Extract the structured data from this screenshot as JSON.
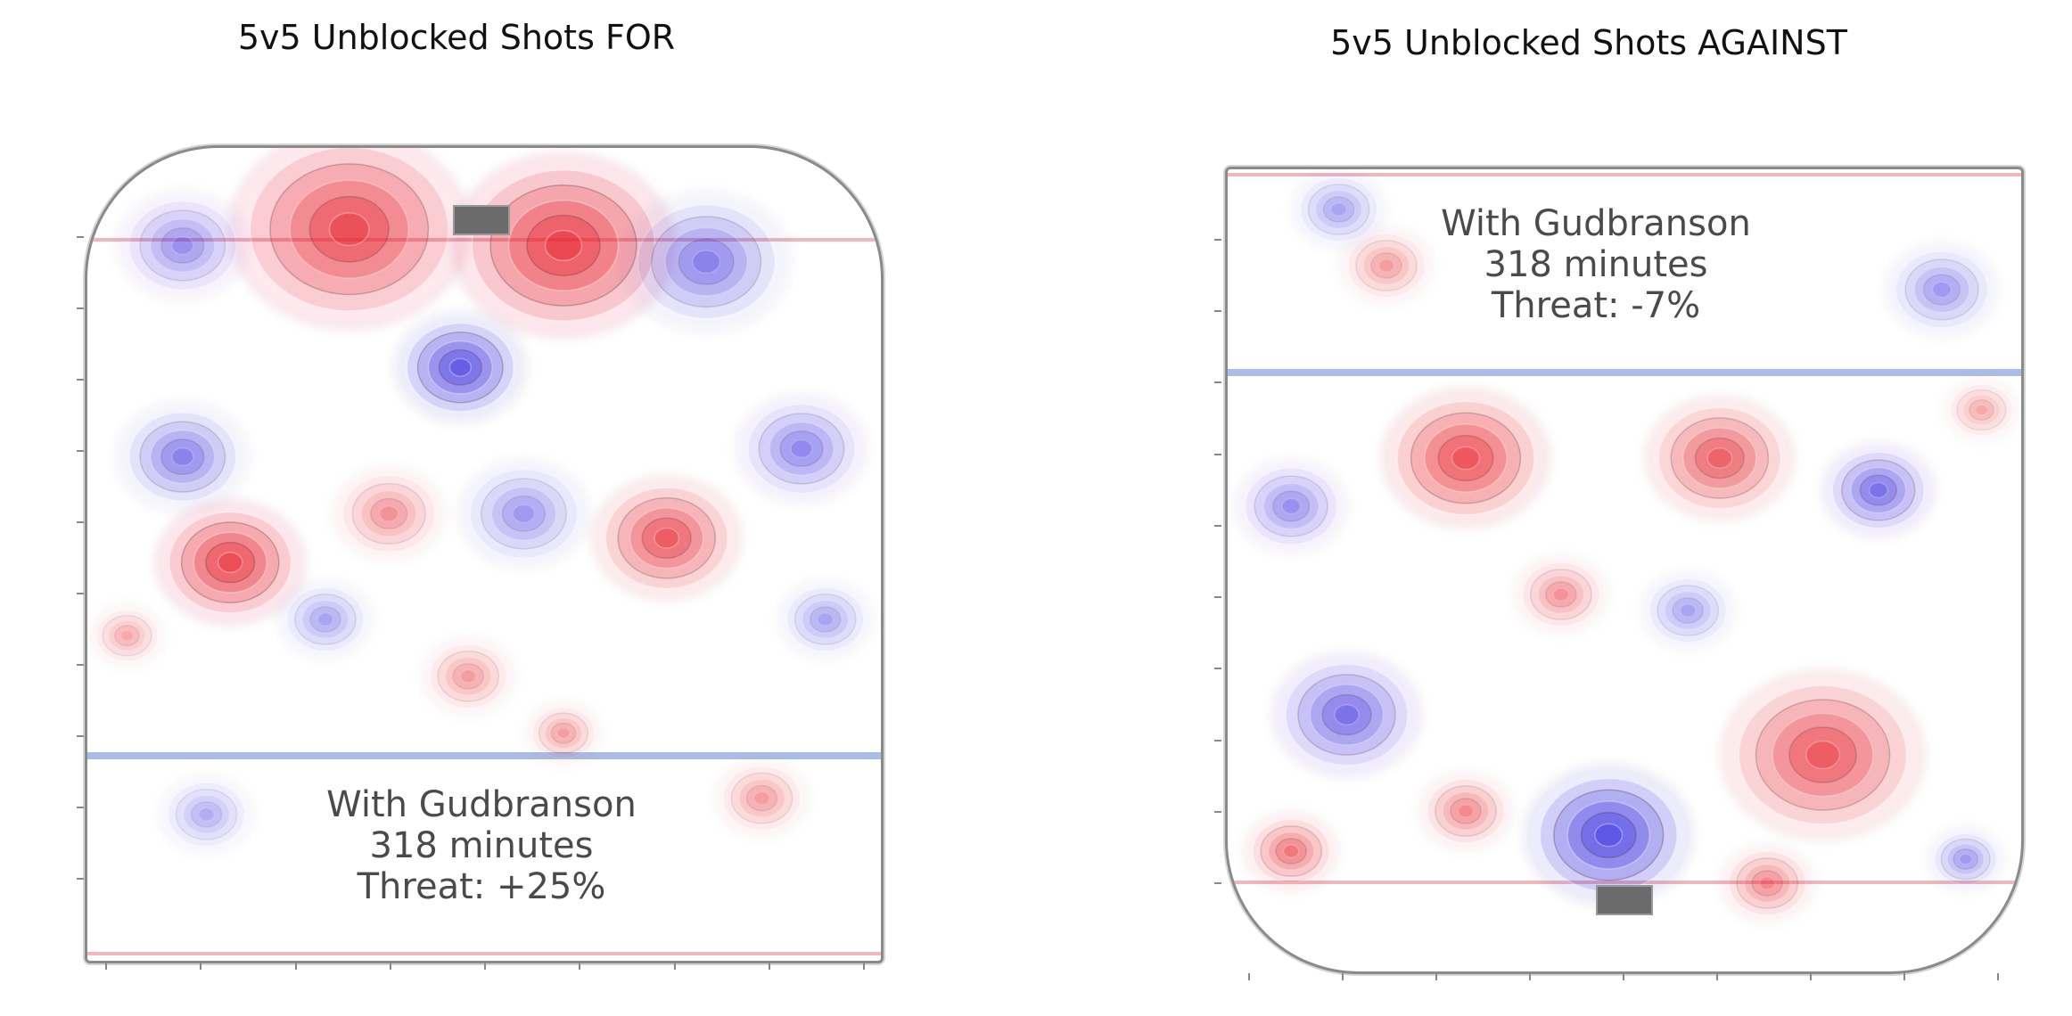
{
  "chart_data": [
    {
      "type": "heatmap",
      "title": "5v5 Unblocked Shots FOR",
      "annotation": {
        "line1": "With Gudbranson",
        "line2": "318 minutes",
        "line3": "Threat: +25%"
      },
      "net_position": "top",
      "colors": {
        "above_average": "#e8202a",
        "below_average": "#3a2fe0"
      },
      "hotspots": [
        {
          "x": 0.33,
          "y": 0.1,
          "r": 0.13,
          "sign": 1,
          "level": 0.85
        },
        {
          "x": 0.6,
          "y": 0.12,
          "r": 0.12,
          "sign": 1,
          "level": 0.95
        },
        {
          "x": 0.47,
          "y": 0.27,
          "r": 0.07,
          "sign": -1,
          "level": 0.85
        },
        {
          "x": 0.18,
          "y": 0.51,
          "r": 0.08,
          "sign": 1,
          "level": 0.9
        },
        {
          "x": 0.73,
          "y": 0.48,
          "r": 0.08,
          "sign": 1,
          "level": 0.75
        },
        {
          "x": 0.12,
          "y": 0.12,
          "r": 0.07,
          "sign": -1,
          "level": 0.45
        },
        {
          "x": 0.78,
          "y": 0.14,
          "r": 0.09,
          "sign": -1,
          "level": 0.55
        },
        {
          "x": 0.12,
          "y": 0.38,
          "r": 0.07,
          "sign": -1,
          "level": 0.55
        },
        {
          "x": 0.9,
          "y": 0.37,
          "r": 0.07,
          "sign": -1,
          "level": 0.5
        },
        {
          "x": 0.55,
          "y": 0.45,
          "r": 0.07,
          "sign": -1,
          "level": 0.4
        },
        {
          "x": 0.38,
          "y": 0.45,
          "r": 0.06,
          "sign": 1,
          "level": 0.4
        },
        {
          "x": 0.3,
          "y": 0.58,
          "r": 0.05,
          "sign": -1,
          "level": 0.35
        },
        {
          "x": 0.48,
          "y": 0.65,
          "r": 0.05,
          "sign": 1,
          "level": 0.35
        },
        {
          "x": 0.15,
          "y": 0.82,
          "r": 0.05,
          "sign": -1,
          "level": 0.3
        },
        {
          "x": 0.85,
          "y": 0.8,
          "r": 0.05,
          "sign": 1,
          "level": 0.35
        },
        {
          "x": 0.6,
          "y": 0.72,
          "r": 0.04,
          "sign": 1,
          "level": 0.35
        },
        {
          "x": 0.93,
          "y": 0.58,
          "r": 0.05,
          "sign": -1,
          "level": 0.35
        },
        {
          "x": 0.05,
          "y": 0.6,
          "r": 0.04,
          "sign": 1,
          "level": 0.3
        }
      ]
    },
    {
      "type": "heatmap",
      "title": "5v5 Unblocked Shots AGAINST",
      "annotation": {
        "line1": "With Gudbranson",
        "line2": "318 minutes",
        "line3": "Threat: -7%"
      },
      "net_position": "bottom",
      "colors": {
        "above_average": "#e8202a",
        "below_average": "#3a2fe0"
      },
      "hotspots": [
        {
          "x": 0.48,
          "y": 0.83,
          "r": 0.09,
          "sign": -1,
          "level": 0.95
        },
        {
          "x": 0.3,
          "y": 0.36,
          "r": 0.09,
          "sign": 1,
          "level": 0.8
        },
        {
          "x": 0.62,
          "y": 0.36,
          "r": 0.08,
          "sign": 1,
          "level": 0.7
        },
        {
          "x": 0.75,
          "y": 0.73,
          "r": 0.11,
          "sign": 1,
          "level": 0.75
        },
        {
          "x": 0.15,
          "y": 0.68,
          "r": 0.08,
          "sign": -1,
          "level": 0.65
        },
        {
          "x": 0.82,
          "y": 0.4,
          "r": 0.06,
          "sign": -1,
          "level": 0.65
        },
        {
          "x": 0.42,
          "y": 0.53,
          "r": 0.05,
          "sign": 1,
          "level": 0.4
        },
        {
          "x": 0.08,
          "y": 0.42,
          "r": 0.06,
          "sign": -1,
          "level": 0.45
        },
        {
          "x": 0.08,
          "y": 0.85,
          "r": 0.05,
          "sign": 1,
          "level": 0.55
        },
        {
          "x": 0.3,
          "y": 0.8,
          "r": 0.05,
          "sign": 1,
          "level": 0.45
        },
        {
          "x": 0.68,
          "y": 0.89,
          "r": 0.05,
          "sign": 1,
          "level": 0.45
        },
        {
          "x": 0.93,
          "y": 0.86,
          "r": 0.04,
          "sign": -1,
          "level": 0.4
        },
        {
          "x": 0.9,
          "y": 0.15,
          "r": 0.06,
          "sign": -1,
          "level": 0.4
        },
        {
          "x": 0.14,
          "y": 0.05,
          "r": 0.05,
          "sign": -1,
          "level": 0.35
        },
        {
          "x": 0.2,
          "y": 0.12,
          "r": 0.05,
          "sign": 1,
          "level": 0.35
        },
        {
          "x": 0.58,
          "y": 0.55,
          "r": 0.05,
          "sign": -1,
          "level": 0.35
        },
        {
          "x": 0.95,
          "y": 0.3,
          "r": 0.04,
          "sign": 1,
          "level": 0.3
        }
      ]
    }
  ]
}
